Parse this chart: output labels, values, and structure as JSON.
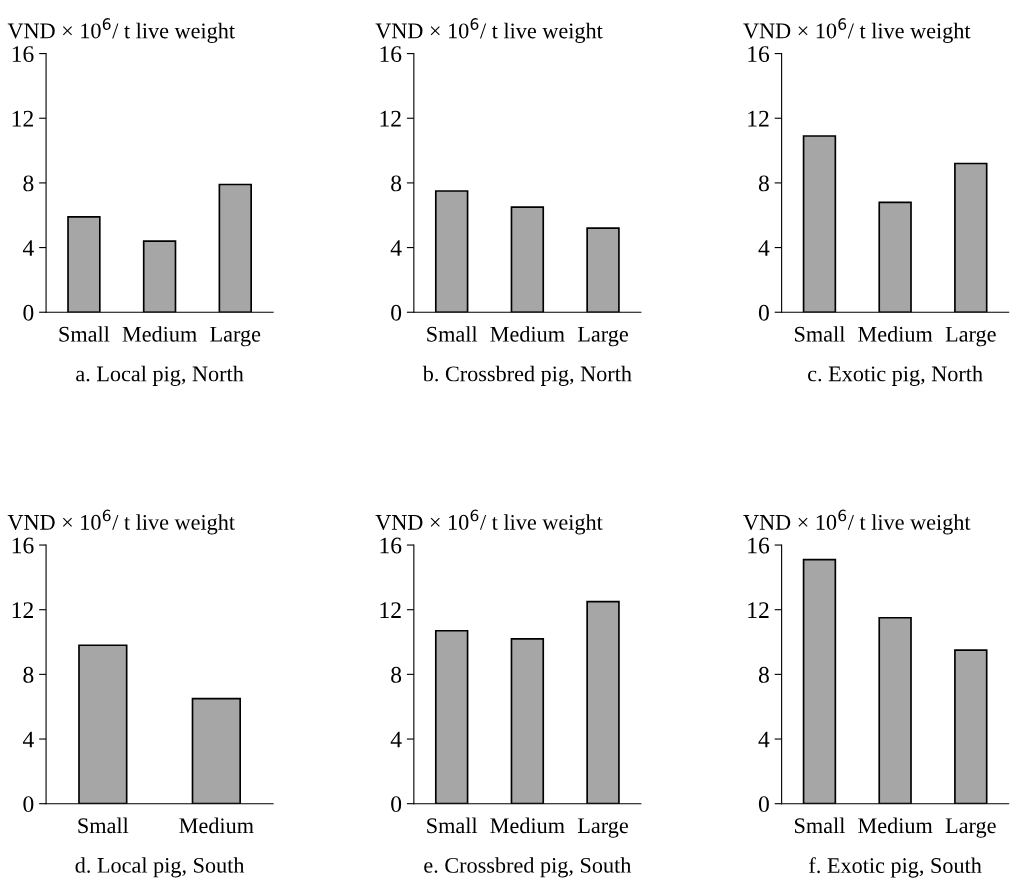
{
  "chart_data": [
    {
      "type": "bar",
      "ylabel": "VND × 10$^{6}$/ t live weight",
      "xlabel": "a. Local pig, North",
      "categories": [
        "Small",
        "Medium",
        "Large"
      ],
      "values": [
        5.9,
        4.4,
        7.9
      ],
      "color": "#a6a6a6",
      "ylim": [
        0,
        16
      ],
      "yticks": [
        0,
        4,
        8,
        12,
        16
      ],
      "grid": false
    },
    {
      "type": "bar",
      "ylabel": "VND × 10$^{6}$/ t live weight",
      "xlabel": "b. Crossbred pig, North",
      "categories": [
        "Small",
        "Medium",
        "Large"
      ],
      "values": [
        7.5,
        6.5,
        5.2
      ],
      "color": "#a6a6a6",
      "ylim": [
        0,
        16
      ],
      "yticks": [
        0,
        4,
        8,
        12,
        16
      ],
      "grid": false
    },
    {
      "type": "bar",
      "ylabel": "VND × 10$^{6}$/ t live weight",
      "xlabel": "c. Exotic pig, North",
      "categories": [
        "Small",
        "Medium",
        "Large"
      ],
      "values": [
        10.9,
        6.8,
        9.2
      ],
      "color": "#a6a6a6",
      "ylim": [
        0,
        16
      ],
      "yticks": [
        0,
        4,
        8,
        12,
        16
      ],
      "grid": false
    },
    {
      "type": "bar",
      "ylabel": "VND × 10$^{6}$/ t live weight",
      "xlabel": "d. Local pig, South",
      "categories": [
        "Small",
        "Medium"
      ],
      "values": [
        9.8,
        6.5
      ],
      "color": "#a6a6a6",
      "ylim": [
        0,
        16
      ],
      "yticks": [
        0,
        4,
        8,
        12,
        16
      ],
      "grid": false
    },
    {
      "type": "bar",
      "ylabel": "VND × 10$^{6}$/ t live weight",
      "xlabel": "e. Crossbred pig, South",
      "categories": [
        "Small",
        "Medium",
        "Large"
      ],
      "values": [
        10.7,
        10.2,
        12.5
      ],
      "color": "#a6a6a6",
      "ylim": [
        0,
        16
      ],
      "yticks": [
        0,
        4,
        8,
        12,
        16
      ],
      "grid": false
    },
    {
      "type": "bar",
      "ylabel": "VND × 10$^{6}$/ t live weight",
      "xlabel": "f. Exotic pig, South",
      "categories": [
        "Small",
        "Medium",
        "Large"
      ],
      "values": [
        15.1,
        11.5,
        9.5
      ],
      "color": "#a6a6a6",
      "ylim": [
        0,
        16
      ],
      "yticks": [
        0,
        4,
        8,
        12,
        16
      ],
      "grid": false
    }
  ]
}
